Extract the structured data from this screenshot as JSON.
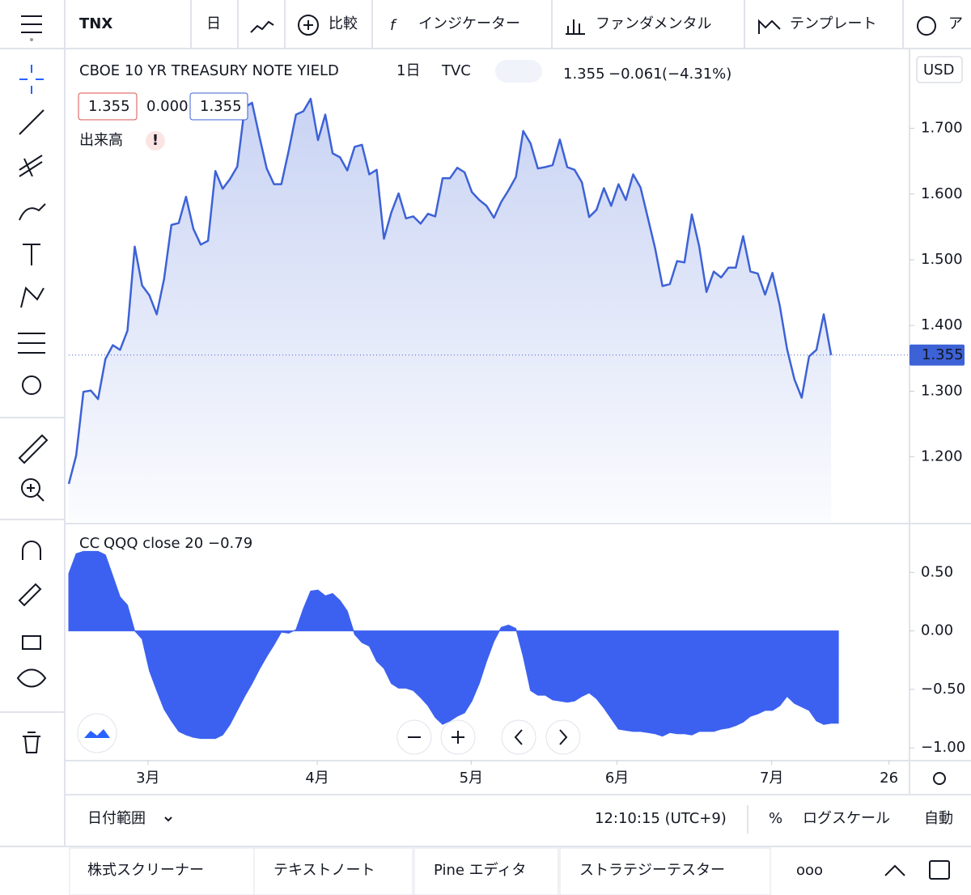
{
  "toolbar": {
    "symbol": "TNX",
    "interval": "日",
    "compare": "比較",
    "indicators": "インジケーター",
    "fundamentals": "ファンダメンタル",
    "templates": "テンプレート",
    "alert": "ア"
  },
  "legend": {
    "name": "CBOE 10 YR TREASURY NOTE YIELD",
    "interval": "1日",
    "exchange": "TVC",
    "price": "1.355",
    "change": "−0.061",
    "change_pct": "(−4.31%)",
    "bid": "1.355",
    "spread": "0.000",
    "ask": "1.355",
    "volume": "出来高"
  },
  "currency": "USD",
  "indicator_legend": {
    "name": "CC",
    "params": "QQQ close 20",
    "value": "−0.79"
  },
  "chart_data": [
    {
      "type": "area",
      "series": [
        {
          "name": "CBOE 10 YR TREASURY NOTE YIELD",
          "color": "#3d62d6",
          "values": [
            1.159,
            1.202,
            1.299,
            1.301,
            1.288,
            1.349,
            1.37,
            1.363,
            1.392,
            1.52,
            1.461,
            1.446,
            1.417,
            1.471,
            1.553,
            1.556,
            1.596,
            1.547,
            1.523,
            1.529,
            1.635,
            1.608,
            1.623,
            1.642,
            1.732,
            1.739,
            1.688,
            1.639,
            1.615,
            1.615,
            1.666,
            1.721,
            1.726,
            1.745,
            1.682,
            1.721,
            1.662,
            1.656,
            1.636,
            1.672,
            1.675,
            1.63,
            1.637,
            1.532,
            1.572,
            1.601,
            1.563,
            1.566,
            1.555,
            1.57,
            1.566,
            1.624,
            1.624,
            1.64,
            1.633,
            1.603,
            1.591,
            1.582,
            1.564,
            1.588,
            1.606,
            1.626,
            1.696,
            1.677,
            1.639,
            1.641,
            1.644,
            1.683,
            1.641,
            1.637,
            1.618,
            1.565,
            1.576,
            1.609,
            1.582,
            1.615,
            1.591,
            1.63,
            1.61,
            1.564,
            1.517,
            1.46,
            1.463,
            1.498,
            1.496,
            1.569,
            1.521,
            1.451,
            1.482,
            1.473,
            1.488,
            1.488,
            1.536,
            1.482,
            1.479,
            1.447,
            1.48,
            1.43,
            1.364,
            1.318,
            1.29,
            1.353,
            1.363,
            1.417,
            1.355
          ]
        }
      ],
      "ylim": [
        1.101,
        1.819
      ],
      "yticks": [
        {
          "value": 1.2,
          "label": "1.200"
        },
        {
          "value": 1.3,
          "label": "1.300"
        },
        {
          "value": 1.4,
          "label": "1.400"
        },
        {
          "value": 1.5,
          "label": "1.500"
        },
        {
          "value": 1.6,
          "label": "1.600"
        },
        {
          "value": 1.7,
          "label": "1.700"
        }
      ],
      "last_label": {
        "value": 1.355,
        "label": "1.355"
      },
      "xlim": [
        0,
        114.7
      ],
      "xticks": [
        {
          "value": 10.8,
          "label": "3月"
        },
        {
          "value": 33.9,
          "label": "4月"
        },
        {
          "value": 54.9,
          "label": "5月"
        },
        {
          "value": 74.8,
          "label": "6月"
        },
        {
          "value": 95.9,
          "label": "7月"
        },
        {
          "value": 111.9,
          "label": "26"
        }
      ]
    },
    {
      "type": "area",
      "series": [
        {
          "name": "CC",
          "color": "#3c61f0",
          "values": [
            0.49,
            0.66,
            0.68,
            0.68,
            0.68,
            0.65,
            0.47,
            0.29,
            0.22,
            0.0,
            -0.07,
            -0.34,
            -0.51,
            -0.67,
            -0.77,
            -0.86,
            -0.89,
            -0.91,
            -0.92,
            -0.92,
            -0.92,
            -0.89,
            -0.8,
            -0.68,
            -0.56,
            -0.45,
            -0.33,
            -0.22,
            -0.12,
            -0.01,
            -0.02,
            0.01,
            0.19,
            0.34,
            0.35,
            0.3,
            0.32,
            0.26,
            0.17,
            -0.03,
            -0.1,
            -0.13,
            -0.26,
            -0.32,
            -0.45,
            -0.49,
            -0.49,
            -0.51,
            -0.57,
            -0.64,
            -0.74,
            -0.8,
            -0.77,
            -0.73,
            -0.7,
            -0.6,
            -0.45,
            -0.26,
            -0.09,
            0.03,
            0.05,
            0.02,
            -0.22,
            -0.51,
            -0.55,
            -0.55,
            -0.59,
            -0.6,
            -0.61,
            -0.6,
            -0.56,
            -0.53,
            -0.58,
            -0.66,
            -0.75,
            -0.84,
            -0.85,
            -0.86,
            -0.86,
            -0.87,
            -0.88,
            -0.9,
            -0.87,
            -0.88,
            -0.88,
            -0.89,
            -0.86,
            -0.86,
            -0.86,
            -0.84,
            -0.83,
            -0.81,
            -0.78,
            -0.73,
            -0.71,
            -0.68,
            -0.68,
            -0.64,
            -0.56,
            -0.62,
            -0.65,
            -0.68,
            -0.77,
            -0.8,
            -0.79,
            -0.79
          ]
        }
      ],
      "ylim": [
        -1.096,
        0.904
      ],
      "yticks": [
        {
          "value": -1,
          "label": "−1.00"
        },
        {
          "value": -0.5,
          "label": "−0.50"
        },
        {
          "value": 0,
          "label": "0.00"
        },
        {
          "value": 0.5,
          "label": "0.50"
        }
      ]
    }
  ],
  "bottom_bar": {
    "date_range": "日付範囲",
    "time": "12:10:15 (UTC+9)",
    "percent": "%",
    "log": "ログスケール",
    "auto": "自動"
  },
  "tabs": [
    "株式スクリーナー",
    "テキストノート",
    "Pine エディタ",
    "ストラテジーテスター"
  ]
}
